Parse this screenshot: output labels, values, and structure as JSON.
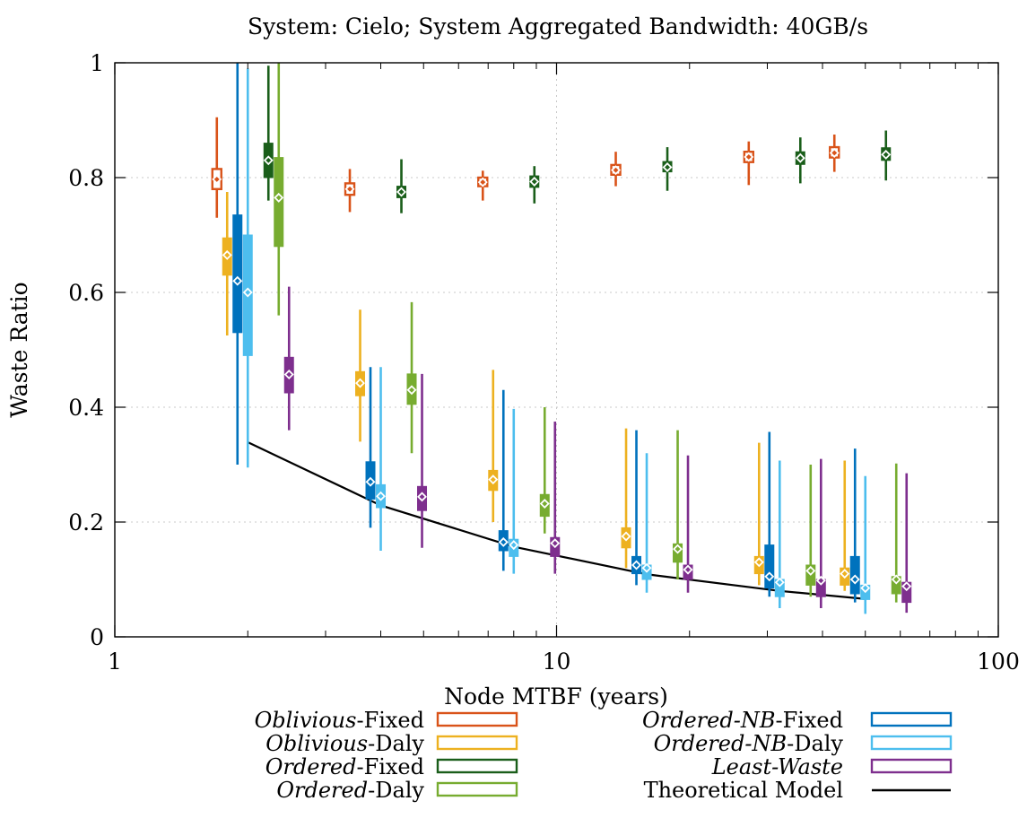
{
  "chart_data": {
    "type": "box",
    "title": "System: Cielo; System Aggregated Bandwidth: 40GB/s",
    "xlabel": "Node MTBF (years)",
    "ylabel": "Waste Ratio",
    "xscale": "log",
    "xlim": [
      1,
      100
    ],
    "ylim": [
      0,
      1
    ],
    "x_ticks": [
      "1",
      "10",
      "100"
    ],
    "y_ticks": [
      "0",
      "0.2",
      "0.4",
      "0.6",
      "0.8",
      "1"
    ],
    "grid": true,
    "legend_position": "bottom",
    "mtbf_groups": [
      2,
      4,
      8,
      16,
      32,
      50
    ],
    "series": [
      {
        "name_italic": "Oblivious",
        "name_suffix": "-Fixed",
        "color": "#d95319",
        "style": "open-box",
        "offset": -3,
        "boxes": [
          {
            "min": 0.73,
            "q1": 0.78,
            "median": 0.8,
            "mean": 0.797,
            "q3": 0.815,
            "max": 0.905
          },
          {
            "min": 0.74,
            "q1": 0.77,
            "median": 0.78,
            "mean": 0.78,
            "q3": 0.79,
            "max": 0.815
          },
          {
            "min": 0.76,
            "q1": 0.785,
            "median": 0.792,
            "mean": 0.792,
            "q3": 0.8,
            "max": 0.812
          },
          {
            "min": 0.785,
            "q1": 0.805,
            "median": 0.813,
            "mean": 0.813,
            "q3": 0.822,
            "max": 0.845
          },
          {
            "min": 0.787,
            "q1": 0.827,
            "median": 0.836,
            "mean": 0.836,
            "q3": 0.845,
            "max": 0.863
          },
          {
            "min": 0.81,
            "q1": 0.835,
            "median": 0.842,
            "mean": 0.843,
            "q3": 0.853,
            "max": 0.875
          }
        ]
      },
      {
        "name_italic": "Oblivious",
        "name_suffix": "-Daly",
        "color": "#edb120",
        "style": "filled-box",
        "offset": -2,
        "boxes": [
          {
            "min": 0.525,
            "q1": 0.63,
            "median": 0.665,
            "mean": 0.665,
            "q3": 0.695,
            "max": 0.775
          },
          {
            "min": 0.34,
            "q1": 0.42,
            "median": 0.44,
            "mean": 0.442,
            "q3": 0.462,
            "max": 0.57
          },
          {
            "min": 0.2,
            "q1": 0.255,
            "median": 0.27,
            "mean": 0.274,
            "q3": 0.29,
            "max": 0.465
          },
          {
            "min": 0.12,
            "q1": 0.155,
            "median": 0.17,
            "mean": 0.175,
            "q3": 0.19,
            "max": 0.363
          },
          {
            "min": 0.09,
            "q1": 0.11,
            "median": 0.125,
            "mean": 0.13,
            "q3": 0.14,
            "max": 0.338
          },
          {
            "min": 0.08,
            "q1": 0.09,
            "median": 0.1,
            "mean": 0.11,
            "q3": 0.12,
            "max": 0.307
          }
        ]
      },
      {
        "name_italic": "Ordered",
        "name_suffix": "-Fixed",
        "color": "#1a5e1a",
        "style": "filled-box",
        "offset": 2,
        "boxes": [
          {
            "min": 0.76,
            "q1": 0.8,
            "median": 0.83,
            "mean": 0.83,
            "q3": 0.86,
            "max": 0.995
          },
          {
            "min": 0.738,
            "q1": 0.765,
            "median": 0.775,
            "mean": 0.775,
            "q3": 0.785,
            "max": 0.832
          },
          {
            "min": 0.755,
            "q1": 0.783,
            "median": 0.793,
            "mean": 0.793,
            "q3": 0.803,
            "max": 0.82
          },
          {
            "min": 0.777,
            "q1": 0.81,
            "median": 0.818,
            "mean": 0.818,
            "q3": 0.828,
            "max": 0.853
          },
          {
            "min": 0.79,
            "q1": 0.823,
            "median": 0.833,
            "mean": 0.834,
            "q3": 0.845,
            "max": 0.87
          },
          {
            "min": 0.795,
            "q1": 0.83,
            "median": 0.84,
            "mean": 0.84,
            "q3": 0.852,
            "max": 0.882
          }
        ]
      },
      {
        "name_italic": "Ordered",
        "name_suffix": "-Daly",
        "color": "#77ac30",
        "style": "filled-box",
        "offset": 3,
        "boxes": [
          {
            "min": 0.56,
            "q1": 0.68,
            "median": 0.76,
            "mean": 0.765,
            "q3": 0.835,
            "max": 1.0
          },
          {
            "min": 0.32,
            "q1": 0.405,
            "median": 0.43,
            "mean": 0.43,
            "q3": 0.458,
            "max": 0.583
          },
          {
            "min": 0.18,
            "q1": 0.21,
            "median": 0.23,
            "mean": 0.232,
            "q3": 0.248,
            "max": 0.4
          },
          {
            "min": 0.1,
            "q1": 0.13,
            "median": 0.145,
            "mean": 0.153,
            "q3": 0.162,
            "max": 0.36
          },
          {
            "min": 0.07,
            "q1": 0.09,
            "median": 0.105,
            "mean": 0.115,
            "q3": 0.125,
            "max": 0.3
          },
          {
            "min": 0.06,
            "q1": 0.075,
            "median": 0.09,
            "mean": 0.1,
            "q3": 0.105,
            "max": 0.302
          }
        ]
      },
      {
        "name_italic": "Ordered-NB",
        "name_suffix": "-Fixed",
        "color": "#0072bd",
        "style": "filled-box",
        "offset": -1,
        "boxes": [
          {
            "min": 0.3,
            "q1": 0.53,
            "median": 0.6,
            "mean": 0.62,
            "q3": 0.735,
            "max": 1.0
          },
          {
            "min": 0.19,
            "q1": 0.24,
            "median": 0.26,
            "mean": 0.27,
            "q3": 0.305,
            "max": 0.47
          },
          {
            "min": 0.115,
            "q1": 0.15,
            "median": 0.16,
            "mean": 0.165,
            "q3": 0.185,
            "max": 0.43
          },
          {
            "min": 0.09,
            "q1": 0.11,
            "median": 0.12,
            "mean": 0.125,
            "q3": 0.14,
            "max": 0.36
          },
          {
            "min": 0.07,
            "q1": 0.085,
            "median": 0.1,
            "mean": 0.105,
            "q3": 0.16,
            "max": 0.357
          },
          {
            "min": 0.06,
            "q1": 0.075,
            "median": 0.09,
            "mean": 0.1,
            "q3": 0.14,
            "max": 0.328
          }
        ]
      },
      {
        "name_italic": "Ordered-NB",
        "name_suffix": "-Daly",
        "color": "#4dbeee",
        "style": "filled-box",
        "offset": 0,
        "boxes": [
          {
            "min": 0.295,
            "q1": 0.49,
            "median": 0.6,
            "mean": 0.6,
            "q3": 0.7,
            "max": 0.99
          },
          {
            "min": 0.15,
            "q1": 0.225,
            "median": 0.245,
            "mean": 0.245,
            "q3": 0.265,
            "max": 0.47
          },
          {
            "min": 0.11,
            "q1": 0.14,
            "median": 0.155,
            "mean": 0.16,
            "q3": 0.17,
            "max": 0.397
          },
          {
            "min": 0.077,
            "q1": 0.1,
            "median": 0.11,
            "mean": 0.12,
            "q3": 0.125,
            "max": 0.32
          },
          {
            "min": 0.05,
            "q1": 0.07,
            "median": 0.085,
            "mean": 0.095,
            "q3": 0.1,
            "max": 0.307
          },
          {
            "min": 0.04,
            "q1": 0.065,
            "median": 0.075,
            "mean": 0.085,
            "q3": 0.09,
            "max": 0.28
          }
        ]
      },
      {
        "name_italic": "Least-Waste",
        "name_suffix": "",
        "color": "#7e2f8e",
        "style": "filled-box",
        "offset": 4,
        "boxes": [
          {
            "min": 0.36,
            "q1": 0.425,
            "median": 0.45,
            "mean": 0.457,
            "q3": 0.487,
            "max": 0.61
          },
          {
            "min": 0.155,
            "q1": 0.22,
            "median": 0.24,
            "mean": 0.244,
            "q3": 0.262,
            "max": 0.458
          },
          {
            "min": 0.11,
            "q1": 0.14,
            "median": 0.155,
            "mean": 0.163,
            "q3": 0.173,
            "max": 0.375
          },
          {
            "min": 0.077,
            "q1": 0.1,
            "median": 0.11,
            "mean": 0.117,
            "q3": 0.125,
            "max": 0.316
          },
          {
            "min": 0.05,
            "q1": 0.07,
            "median": 0.085,
            "mean": 0.098,
            "q3": 0.1,
            "max": 0.31
          },
          {
            "min": 0.042,
            "q1": 0.06,
            "median": 0.075,
            "mean": 0.088,
            "q3": 0.095,
            "max": 0.285
          }
        ]
      }
    ],
    "model": {
      "name": "Theoretical Model",
      "color": "#000000",
      "x": [
        2,
        4,
        8,
        16,
        32,
        50
      ],
      "y": [
        0.339,
        0.229,
        0.157,
        0.109,
        0.08,
        0.066
      ]
    }
  }
}
